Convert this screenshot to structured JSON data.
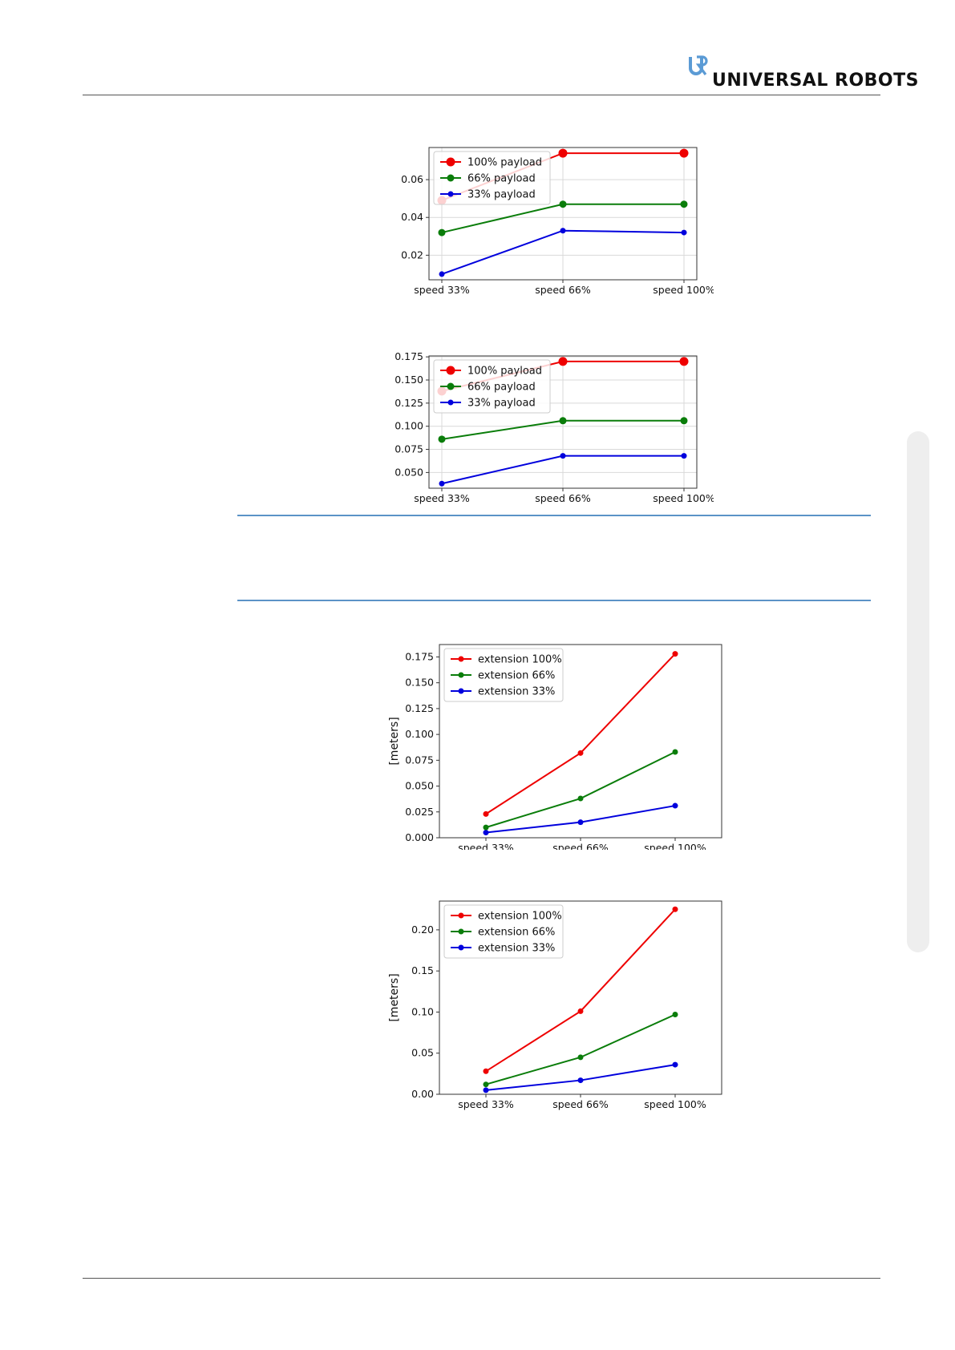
{
  "header": {
    "brand": "UNIVERSAL ROBOTS",
    "logo_icon": "ur-logo-icon",
    "logo_color": "#5b9bd5"
  },
  "colors": {
    "red": "#ee0000",
    "green": "#0a7d0a",
    "blue": "#0000dd",
    "note_line": "#5b93c7"
  },
  "chart_data": [
    {
      "type": "line",
      "categories": [
        "speed 33%",
        "speed 66%",
        "speed 100%"
      ],
      "series": [
        {
          "name": "100% payload",
          "color": "#ee0000",
          "values": [
            0.049,
            0.074,
            0.074
          ]
        },
        {
          "name": "66% payload",
          "color": "#0a7d0a",
          "values": [
            0.032,
            0.047,
            0.047
          ]
        },
        {
          "name": "33% payload",
          "color": "#0000dd",
          "values": [
            0.01,
            0.033,
            0.032
          ]
        }
      ],
      "yticks": [
        "0.02",
        "0.04",
        "0.06"
      ],
      "ylim": [
        0.007,
        0.077
      ],
      "ylabel": "",
      "grid": true,
      "legend": "upper-left"
    },
    {
      "type": "line",
      "categories": [
        "speed 33%",
        "speed 66%",
        "speed 100%"
      ],
      "series": [
        {
          "name": "100% payload",
          "color": "#ee0000",
          "values": [
            0.138,
            0.17,
            0.17
          ]
        },
        {
          "name": "66% payload",
          "color": "#0a7d0a",
          "values": [
            0.086,
            0.106,
            0.106
          ]
        },
        {
          "name": "33% payload",
          "color": "#0000dd",
          "values": [
            0.038,
            0.068,
            0.068
          ]
        }
      ],
      "yticks": [
        "0.050",
        "0.075",
        "0.100",
        "0.125",
        "0.150",
        "0.175"
      ],
      "ylim": [
        0.033,
        0.176
      ],
      "ylabel": "",
      "grid": true,
      "legend": "upper-left"
    },
    {
      "type": "line",
      "categories": [
        "speed 33%",
        "speed 66%",
        "speed 100%"
      ],
      "series": [
        {
          "name": "extension 100%",
          "color": "#ee0000",
          "values": [
            0.023,
            0.082,
            0.178
          ]
        },
        {
          "name": "extension 66%",
          "color": "#0a7d0a",
          "values": [
            0.01,
            0.038,
            0.083
          ]
        },
        {
          "name": "extension 33%",
          "color": "#0000dd",
          "values": [
            0.005,
            0.015,
            0.031
          ]
        }
      ],
      "yticks": [
        "0.000",
        "0.025",
        "0.050",
        "0.075",
        "0.100",
        "0.125",
        "0.150",
        "0.175"
      ],
      "ylim": [
        0.0,
        0.187
      ],
      "ylabel": "[meters]",
      "grid": false,
      "legend": "upper-left"
    },
    {
      "type": "line",
      "categories": [
        "speed 33%",
        "speed 66%",
        "speed 100%"
      ],
      "series": [
        {
          "name": "extension 100%",
          "color": "#ee0000",
          "values": [
            0.028,
            0.101,
            0.225
          ]
        },
        {
          "name": "extension 66%",
          "color": "#0a7d0a",
          "values": [
            0.012,
            0.045,
            0.097
          ]
        },
        {
          "name": "extension 33%",
          "color": "#0000dd",
          "values": [
            0.005,
            0.017,
            0.036
          ]
        }
      ],
      "yticks": [
        "0.00",
        "0.05",
        "0.10",
        "0.15",
        "0.20"
      ],
      "ylim": [
        0.0,
        0.235
      ],
      "ylabel": "[meters]",
      "grid": false,
      "legend": "upper-left"
    }
  ]
}
